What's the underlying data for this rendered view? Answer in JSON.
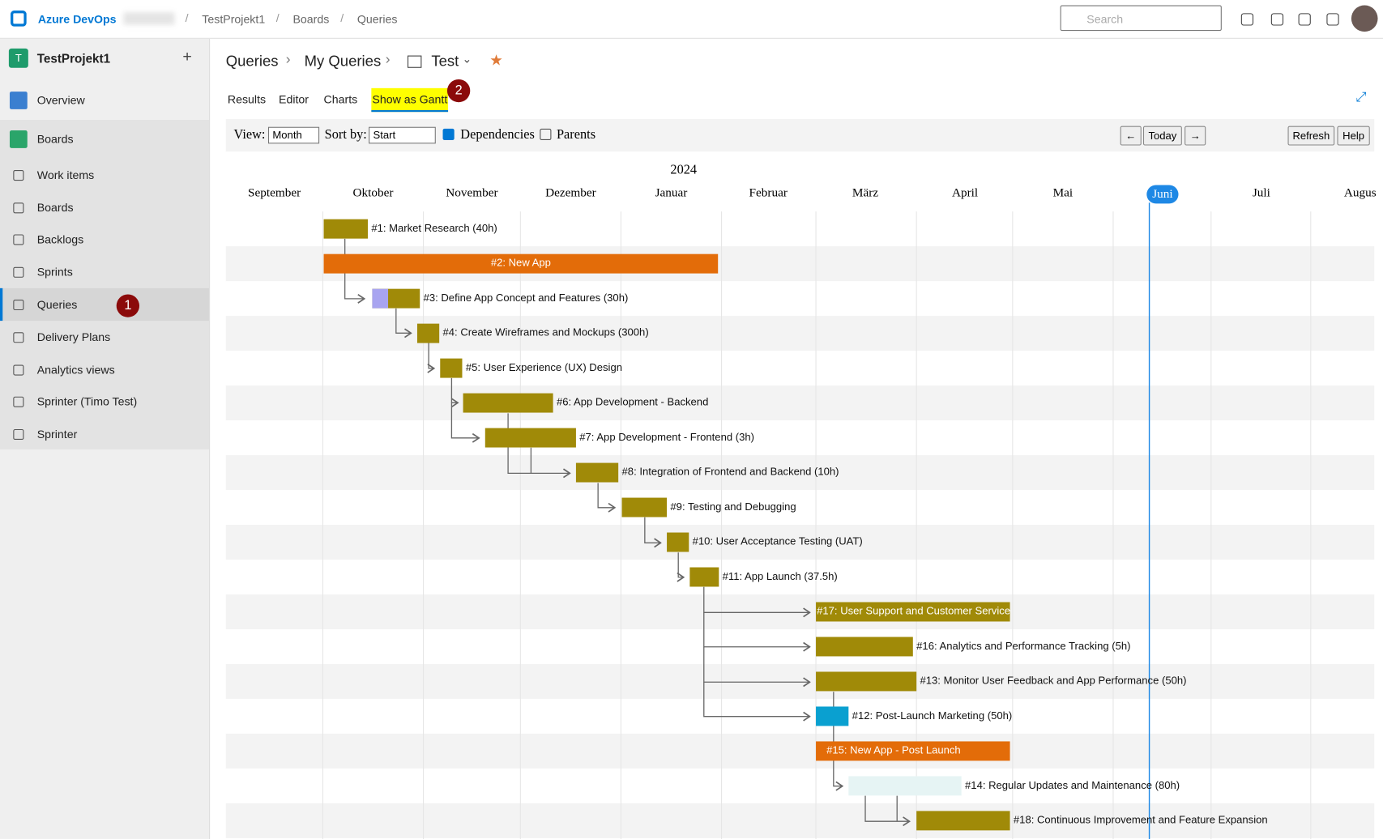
{
  "header": {
    "product": "Azure DevOps",
    "breadcrumbs": [
      "TestProjekt1",
      "Boards",
      "Queries"
    ],
    "search_placeholder": "Search"
  },
  "sidebar": {
    "project_initial": "T",
    "project": "TestProjekt1",
    "add": "+",
    "items": [
      "Overview",
      "Boards",
      "Work items",
      "Boards",
      "Backlogs",
      "Sprints",
      "Queries",
      "Delivery Plans",
      "Analytics views",
      "Sprinter (Timo Test)",
      "Sprinter"
    ]
  },
  "badges": [
    "1",
    "2"
  ],
  "query_path": [
    "Queries",
    "My Queries",
    "Test"
  ],
  "tabs": [
    "Results",
    "Editor",
    "Charts",
    "Show as Gantt"
  ],
  "toolbar": {
    "view_label": "View:",
    "view_value": "Month",
    "sort_label": "Sort by:",
    "sort_value": "Start",
    "dependencies": "Dependencies",
    "parents": "Parents",
    "nav": [
      "←",
      "Today",
      "→"
    ],
    "actions": [
      "Refresh",
      "Help"
    ]
  },
  "gantt": {
    "year": "2024",
    "months": [
      "September",
      "Oktober",
      "November",
      "Dezember",
      "Januar",
      "Februar",
      "März",
      "April",
      "Mai",
      "Juni",
      "Juli",
      "Augus"
    ],
    "rows": [
      "#1: Market Research (40h)",
      "#2: New App",
      "#3: Define App Concept and Features (30h)",
      "#4: Create Wireframes and Mockups (300h)",
      "#5: User Experience (UX) Design",
      "#6: App Development - Backend",
      "#7: App Development - Frontend (3h)",
      "#8: Integration of Frontend and Backend (10h)",
      "#9: Testing and Debugging",
      "#10: User Acceptance Testing (UAT)",
      "#11: App Launch (37.5h)",
      "#17: User Support and Customer Service",
      "#16: Analytics and Performance Tracking (5h)",
      "#13: Monitor User Feedback and App Performance (50h)",
      "#12: Post-Launch Marketing (50h)",
      "#15: New App - Post Launch",
      "#14: Regular Updates and Maintenance (80h)",
      "#18: Continuous Improvement and Feature Expansion"
    ]
  }
}
